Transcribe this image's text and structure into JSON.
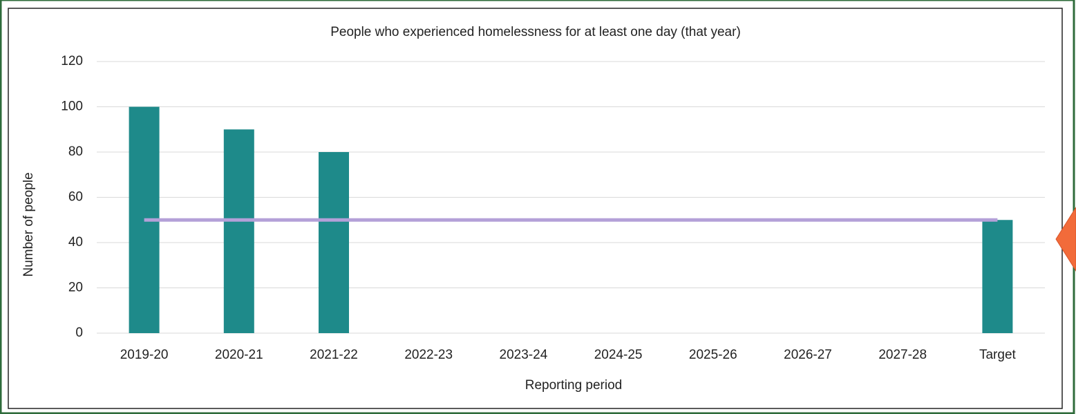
{
  "chart_data": {
    "type": "bar",
    "title": "People who experienced homelessness for at least one day (that year)",
    "x_label": "Reporting period",
    "y_label": "Number of people",
    "categories": [
      "2019-20",
      "2020-21",
      "2021-22",
      "2022-23",
      "2023-24",
      "2024-25",
      "2025-26",
      "2026-27",
      "2027-28",
      "Target"
    ],
    "series": [
      {
        "type": "bar",
        "color": "#1e8a8a",
        "values": [
          100,
          90,
          80,
          null,
          null,
          null,
          null,
          null,
          null,
          50
        ]
      },
      {
        "type": "line",
        "color": "#b4a0d8",
        "values": [
          50,
          50,
          50,
          50,
          50,
          50,
          50,
          50,
          50,
          50
        ]
      }
    ],
    "ylim": [
      0,
      120
    ],
    "yticks": [
      0,
      20,
      40,
      60,
      80,
      100,
      120
    ],
    "grid": true
  }
}
